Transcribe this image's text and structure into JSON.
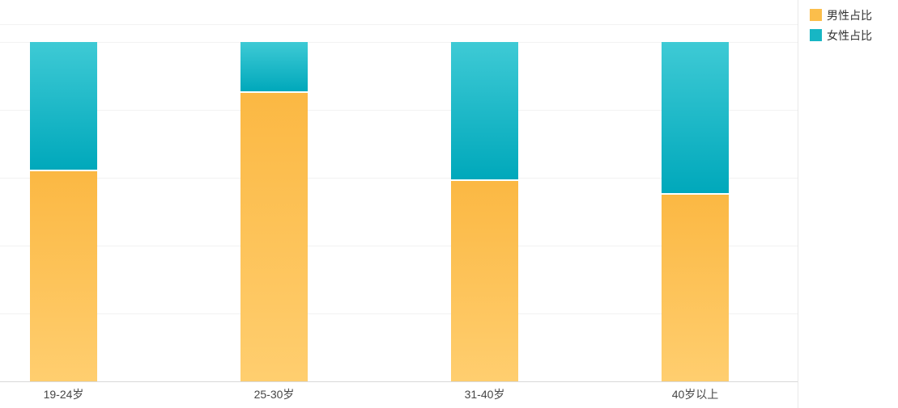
{
  "chart_data": {
    "type": "bar",
    "variant": "stacked-percentage",
    "title": "",
    "categories": [
      "19-24岁",
      "25-30岁",
      "31-40岁",
      "40岁以上"
    ],
    "series": [
      {
        "name": "男性占比",
        "key": "male",
        "values": [
          0.62,
          0.85,
          0.59,
          0.55
        ],
        "gradient_top": "#FBB843",
        "gradient_bottom": "#FFCE6F",
        "legend_color": "#FBBE4B"
      },
      {
        "name": "女性占比",
        "key": "female",
        "values": [
          0.38,
          0.15,
          0.41,
          0.45
        ],
        "gradient_top": "#3ECAD5",
        "gradient_bottom": "#00A8BB",
        "legend_color": "#17B6C4"
      }
    ],
    "xlabel": "",
    "ylabel": "",
    "ylim": [
      0,
      1
    ],
    "grid": true,
    "gridline_interval": 0.2,
    "legend_position": "top-right",
    "colors": {
      "gridline": "#F2F2F2",
      "axis_line": "#D8D8D8",
      "plot_right_border": "#E8E8E8",
      "axis_label_text": "#464646",
      "legend_label_text": "#333333",
      "segment_divider": "#FFFFFF",
      "background": "#FFFFFF"
    }
  }
}
